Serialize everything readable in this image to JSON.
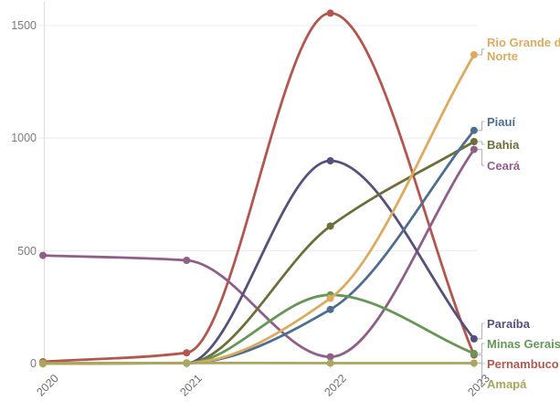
{
  "chart_data": {
    "type": "line",
    "x": [
      "2020",
      "2021",
      "2022",
      "2023"
    ],
    "xlabel": "",
    "ylabel": "",
    "ylim": [
      0,
      1600
    ],
    "yticks": [
      0,
      500,
      1000,
      1500
    ],
    "grid": true,
    "legend_position": "right-end-labels",
    "interpolation": "smooth",
    "series": [
      {
        "name": "Pernambuco",
        "color": "#b3574e",
        "values": [
          8,
          48,
          1555,
          38
        ]
      },
      {
        "name": "Ceará",
        "color": "#8f5e89",
        "values": [
          480,
          458,
          30,
          950
        ]
      },
      {
        "name": "Paraíba",
        "color": "#55517c",
        "values": [
          0,
          2,
          900,
          110
        ]
      },
      {
        "name": "Bahia",
        "color": "#6e6e3a",
        "values": [
          0,
          2,
          610,
          985
        ]
      },
      {
        "name": "Piauí",
        "color": "#4e6e90",
        "values": [
          0,
          2,
          240,
          1035
        ]
      },
      {
        "name": "Minas Gerais",
        "color": "#659757",
        "values": [
          0,
          2,
          305,
          45
        ]
      },
      {
        "name": "Rio Grande do Norte",
        "color": "#ddab5f",
        "values": [
          0,
          3,
          290,
          1370
        ]
      },
      {
        "name": "Amapá",
        "color": "#aaa65b",
        "values": [
          2,
          3,
          2,
          2
        ]
      }
    ],
    "label_order_top_to_bottom": [
      "Rio Grande do Norte",
      "Piauí",
      "Bahia",
      "Ceará",
      "Paraíba",
      "Minas Gerais",
      "Pernambuco",
      "Amapá"
    ]
  },
  "axis": {
    "y_tick_labels": [
      "0",
      "500",
      "1000",
      "1500"
    ],
    "x_tick_labels": [
      "2020",
      "2021",
      "2022",
      "2023"
    ]
  },
  "colors": {
    "gridline": "#ececec",
    "axis_line": "#dcdcdc",
    "tick_mark": "#c8c8c8",
    "leader_line": "#b3b3b3",
    "y_tick_text": "#7c7c7c",
    "x_tick_text": "#6e6e6e"
  }
}
